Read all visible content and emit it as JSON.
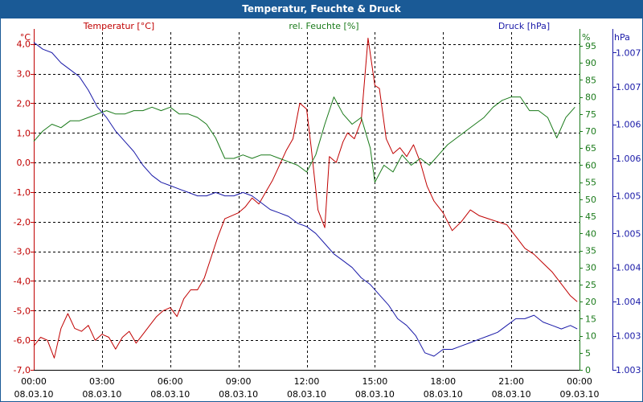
{
  "window": {
    "title": "Temperatur, Feuchte & Druck"
  },
  "colors": {
    "temp": "#c00000",
    "humidity": "#1a7a1a",
    "pressure": "#1a1aa8",
    "titlebar": "#1a5a96"
  },
  "chart_data": {
    "type": "line",
    "title": "Temperatur, Feuchte & Druck",
    "grid": true,
    "x_ticks": [
      {
        "time": "00:00",
        "date": "08.03.10"
      },
      {
        "time": "03:00",
        "date": "08.03.10"
      },
      {
        "time": "06:00",
        "date": "08.03.10"
      },
      {
        "time": "09:00",
        "date": "08.03.10"
      },
      {
        "time": "12:00",
        "date": "08.03.10"
      },
      {
        "time": "15:00",
        "date": "08.03.10"
      },
      {
        "time": "18:00",
        "date": "08.03.10"
      },
      {
        "time": "21:00",
        "date": "08.03.10"
      },
      {
        "time": "00:00",
        "date": "09.03.10"
      }
    ],
    "x_range_hours": [
      0,
      24
    ],
    "axes": {
      "temperature": {
        "label": "Temperatur [°C]",
        "unit": "°C",
        "range": [
          -7,
          4.4
        ],
        "ticks": [
          "4,0",
          "3,0",
          "2,0",
          "1,0",
          "0,0",
          "-1,0",
          "-2,0",
          "-3,0",
          "-4,0",
          "-5,0",
          "-6,0",
          "-7,0"
        ],
        "tick_values": [
          4,
          3,
          2,
          1,
          0,
          -1,
          -2,
          -3,
          -4,
          -5,
          -6,
          -7
        ]
      },
      "humidity": {
        "label": "rel. Feuchte [%]",
        "unit": "%",
        "range": [
          0,
          99
        ],
        "ticks": [
          "95",
          "90",
          "85",
          "80",
          "75",
          "70",
          "65",
          "60",
          "55",
          "50",
          "45",
          "40",
          "35",
          "30",
          "25",
          "20",
          "15",
          "10",
          "5",
          "0"
        ],
        "tick_values": [
          95,
          90,
          85,
          80,
          75,
          70,
          65,
          60,
          55,
          50,
          45,
          40,
          35,
          30,
          25,
          20,
          15,
          10,
          5,
          0
        ]
      },
      "pressure": {
        "label": "Druck [hPa]",
        "unit": "hPa",
        "range": [
          0,
          99
        ],
        "ticks": [
          "1.007",
          "1.007",
          "1.006",
          "1.006",
          "1.005",
          "1.005",
          "1.004",
          "1.004",
          "1.003",
          "1.003"
        ],
        "tick_values": [
          93,
          83,
          72,
          62,
          51,
          40,
          30,
          20,
          10,
          0
        ]
      }
    },
    "series": [
      {
        "name": "Temperatur [°C]",
        "axis": "temperature",
        "color": "#c00000",
        "x": [
          0,
          0.3,
          0.6,
          0.9,
          1.2,
          1.5,
          1.8,
          2.1,
          2.4,
          2.7,
          3.0,
          3.3,
          3.6,
          3.9,
          4.2,
          4.5,
          4.8,
          5.1,
          5.4,
          5.7,
          6.0,
          6.3,
          6.6,
          6.9,
          7.2,
          7.5,
          7.8,
          8.1,
          8.4,
          8.7,
          9.0,
          9.3,
          9.6,
          9.9,
          10.2,
          10.5,
          10.8,
          11.1,
          11.4,
          11.7,
          12.0,
          12.2,
          12.5,
          12.8,
          13.0,
          13.3,
          13.6,
          13.8,
          14.1,
          14.4,
          14.7,
          15.0,
          15.2,
          15.5,
          15.8,
          16.1,
          16.4,
          16.7,
          17.0,
          17.3,
          17.6,
          18.0,
          18.4,
          18.8,
          19.2,
          19.6,
          20.0,
          20.4,
          20.8,
          21.2,
          21.6,
          22.0,
          22.4,
          22.8,
          23.2,
          23.6,
          23.9
        ],
        "values": [
          -6.2,
          -5.9,
          -6.0,
          -6.6,
          -5.6,
          -5.1,
          -5.6,
          -5.7,
          -5.5,
          -6.0,
          -5.8,
          -5.9,
          -6.3,
          -5.9,
          -5.7,
          -6.1,
          -5.8,
          -5.5,
          -5.2,
          -5.0,
          -4.9,
          -5.2,
          -4.6,
          -4.3,
          -4.3,
          -3.9,
          -3.2,
          -2.5,
          -1.9,
          -1.8,
          -1.7,
          -1.5,
          -1.2,
          -1.4,
          -1.0,
          -0.6,
          -0.1,
          0.4,
          0.8,
          2.0,
          1.8,
          0.5,
          -1.6,
          -2.2,
          0.2,
          0.0,
          0.7,
          1.0,
          0.8,
          1.4,
          4.2,
          2.6,
          2.5,
          0.8,
          0.3,
          0.5,
          0.2,
          0.6,
          0.0,
          -0.8,
          -1.3,
          -1.7,
          -2.3,
          -2.0,
          -1.6,
          -1.8,
          -1.9,
          -2.0,
          -2.1,
          -2.5,
          -2.9,
          -3.1,
          -3.4,
          -3.7,
          -4.1,
          -4.5,
          -4.7
        ]
      },
      {
        "name": "rel. Feuchte [%]",
        "axis": "humidity",
        "color": "#1a7a1a",
        "x": [
          0,
          0.4,
          0.8,
          1.2,
          1.6,
          2.0,
          2.4,
          2.8,
          3.2,
          3.6,
          4.0,
          4.4,
          4.8,
          5.2,
          5.6,
          6.0,
          6.4,
          6.8,
          7.2,
          7.6,
          8.0,
          8.4,
          8.8,
          9.2,
          9.6,
          10.0,
          10.4,
          10.8,
          11.2,
          11.6,
          12.0,
          12.4,
          12.8,
          13.2,
          13.6,
          14.0,
          14.4,
          14.8,
          15.0,
          15.4,
          15.8,
          16.2,
          16.6,
          17.0,
          17.4,
          17.8,
          18.2,
          18.6,
          19.0,
          19.4,
          19.8,
          20.2,
          20.6,
          21.0,
          21.4,
          21.8,
          22.2,
          22.6,
          23.0,
          23.4,
          23.8
        ],
        "values": [
          67,
          70,
          72,
          71,
          73,
          73,
          74,
          75,
          76,
          75,
          75,
          76,
          76,
          77,
          76,
          77,
          75,
          75,
          74,
          72,
          68,
          62,
          62,
          63,
          62,
          63,
          63,
          62,
          61,
          60,
          58,
          63,
          72,
          80,
          75,
          72,
          74,
          65,
          55,
          60,
          58,
          63,
          60,
          62,
          60,
          63,
          66,
          68,
          70,
          72,
          74,
          77,
          79,
          80,
          80,
          76,
          76,
          74,
          68,
          74,
          77
        ]
      },
      {
        "name": "Druck [hPa]",
        "axis": "pressure",
        "color": "#1a1aa8",
        "x": [
          0,
          0.4,
          0.8,
          1.2,
          1.6,
          2.0,
          2.4,
          2.8,
          3.2,
          3.6,
          4.0,
          4.4,
          4.8,
          5.2,
          5.6,
          6.0,
          6.4,
          6.8,
          7.2,
          7.6,
          8.0,
          8.4,
          8.8,
          9.2,
          9.6,
          10.0,
          10.4,
          10.8,
          11.2,
          11.6,
          12.0,
          12.4,
          12.8,
          13.2,
          13.6,
          14.0,
          14.4,
          14.8,
          15.2,
          15.6,
          16.0,
          16.4,
          16.8,
          17.2,
          17.6,
          18.0,
          18.4,
          18.8,
          19.2,
          19.6,
          20.0,
          20.4,
          20.8,
          21.2,
          21.6,
          22.0,
          22.4,
          22.8,
          23.2,
          23.6,
          23.9
        ],
        "values": [
          96,
          94,
          93,
          90,
          88,
          86,
          82,
          77,
          74,
          70,
          67,
          64,
          60,
          57,
          55,
          54,
          53,
          52,
          51,
          51,
          52,
          51,
          51,
          52,
          51,
          49,
          47,
          46,
          45,
          43,
          42,
          40,
          37,
          34,
          32,
          30,
          27,
          25,
          22,
          19,
          15,
          13,
          10,
          5,
          4,
          6,
          6,
          7,
          8,
          9,
          10,
          11,
          13,
          15,
          15,
          16,
          14,
          13,
          12,
          13,
          12
        ]
      }
    ]
  }
}
